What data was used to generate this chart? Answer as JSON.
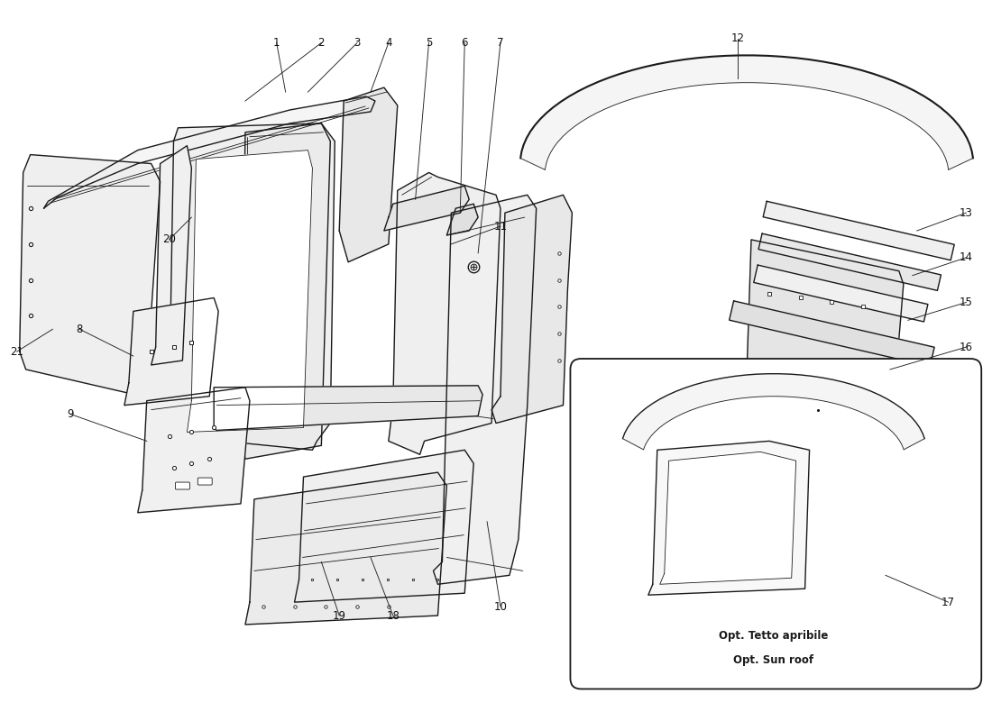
{
  "bg_color": "#ffffff",
  "line_color": "#1a1a1a",
  "label_color": "#111111",
  "sunroof_text1": "Opt. Tetto apribile",
  "sunroof_text2": "Opt. Sun roof",
  "lw_main": 1.0,
  "lw_thick": 1.5,
  "lw_thin": 0.6,
  "fig_w": 11.0,
  "fig_h": 8.0,
  "dpi": 100,
  "xlim": [
    0,
    11
  ],
  "ylim": [
    0,
    8
  ],
  "labels": {
    "1": [
      3.05,
      7.55,
      3.15,
      7.0
    ],
    "2": [
      3.55,
      7.55,
      2.7,
      6.9
    ],
    "3": [
      3.95,
      7.55,
      3.4,
      7.0
    ],
    "4": [
      4.3,
      7.55,
      4.1,
      7.0
    ],
    "5": [
      4.75,
      7.55,
      4.6,
      5.8
    ],
    "6": [
      5.15,
      7.55,
      5.1,
      5.65
    ],
    "7": [
      5.55,
      7.55,
      5.3,
      5.2
    ],
    "8": [
      0.85,
      4.35,
      1.45,
      4.05
    ],
    "9": [
      0.75,
      3.4,
      1.6,
      3.1
    ],
    "10": [
      5.55,
      1.25,
      5.4,
      2.2
    ],
    "11": [
      5.55,
      5.5,
      5.0,
      5.3
    ],
    "12": [
      8.2,
      7.6,
      8.2,
      7.15
    ],
    "13": [
      10.75,
      5.65,
      10.2,
      5.45
    ],
    "14": [
      10.75,
      5.15,
      10.15,
      4.95
    ],
    "15": [
      10.75,
      4.65,
      10.1,
      4.45
    ],
    "16": [
      10.75,
      4.15,
      9.9,
      3.9
    ],
    "17": [
      10.55,
      1.3,
      9.85,
      1.6
    ],
    "18": [
      4.35,
      1.15,
      4.1,
      1.8
    ],
    "19": [
      3.75,
      1.15,
      3.55,
      1.75
    ],
    "20": [
      1.85,
      5.35,
      2.1,
      5.6
    ],
    "21": [
      0.15,
      4.1,
      0.55,
      4.35
    ]
  }
}
